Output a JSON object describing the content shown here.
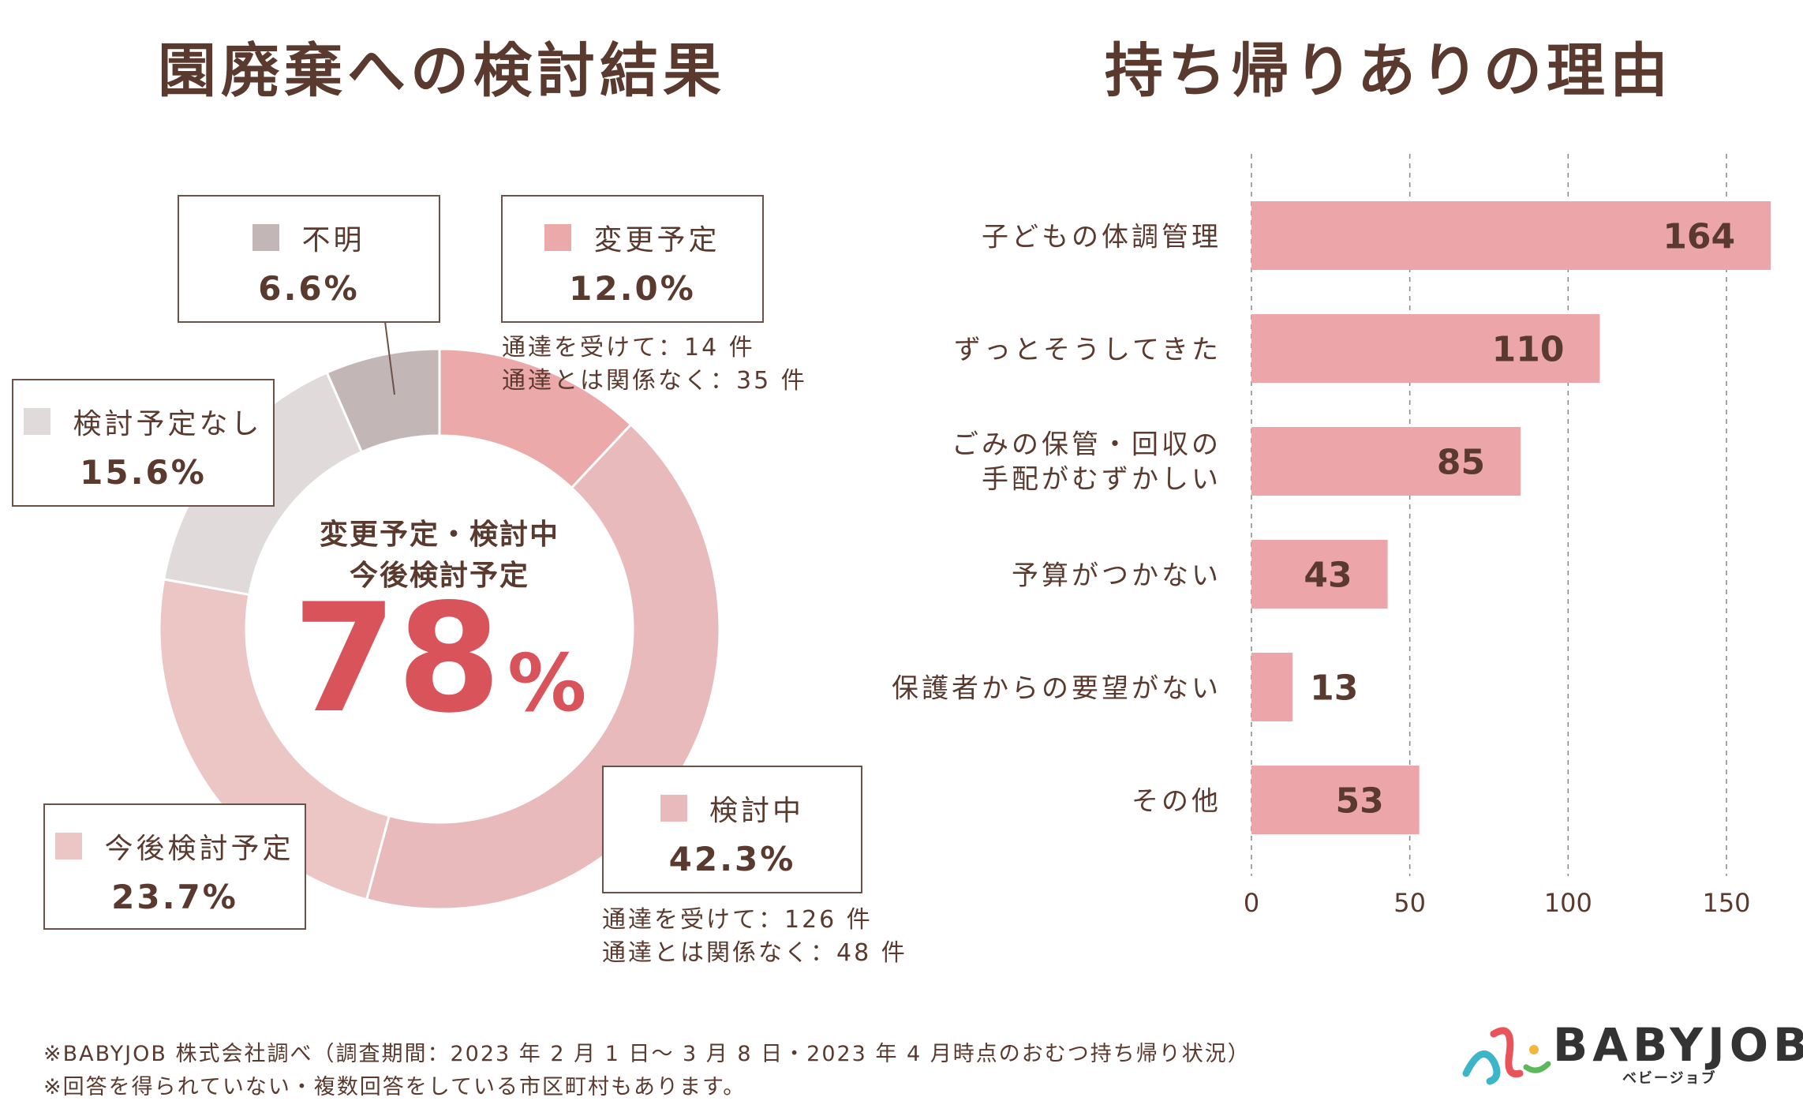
{
  "chart_data": [
    {
      "type": "pie",
      "title": "園廃棄への検討結果",
      "center_label_line1": "変更予定・検討中",
      "center_label_line2": "今後検討予定",
      "center_value": "78",
      "center_unit": "%",
      "slices": [
        {
          "name": "変更予定",
          "value": 12.0,
          "label": "12.0%",
          "color": "#eca9aa"
        },
        {
          "name": "検討中",
          "value": 42.3,
          "label": "42.3%",
          "color": "#e8babb"
        },
        {
          "name": "今後検討予定",
          "value": 23.7,
          "label": "23.7%",
          "color": "#ecc5c5"
        },
        {
          "name": "検討予定なし",
          "value": 15.6,
          "label": "15.6%",
          "color": "#e0dada"
        },
        {
          "name": "不明",
          "value": 6.6,
          "label": "6.6%",
          "color": "#c2b7b6"
        }
      ],
      "notes": {
        "henkou_line1": "通達を受けて：14 件",
        "henkou_line2": "通達とは関係なく：35 件",
        "kentou_line1": "通達を受けて：126 件",
        "kentou_line2": "通達とは関係なく：48 件"
      }
    },
    {
      "type": "bar",
      "orientation": "horizontal",
      "title": "持ち帰りありの理由",
      "categories": [
        "子どもの体調管理",
        "ずっとそうしてきた",
        "ごみの保管・回収の|手配がむずかしい",
        "予算がつかない",
        "保護者からの要望がない",
        "その他"
      ],
      "values": [
        164,
        110,
        85,
        43,
        13,
        53
      ],
      "value_labels": [
        "164",
        "110",
        "85",
        "43",
        "13",
        "53"
      ],
      "xlim": [
        0,
        165
      ],
      "xticks": [
        "0",
        "50",
        "100",
        "150"
      ],
      "grid": true,
      "bar_color": "#eca5a8"
    }
  ],
  "footnotes": {
    "line1": "※BABYJOB 株式会社調べ（調査期間：2023 年 2 月 1 日〜 3 月 8 日・2023 年 4 月時点のおむつ持ち帰り状況）",
    "line2": "※回答を得られていない・複数回答をしている市区町村もあります。"
  },
  "logo": {
    "word": "BABYJOB",
    "kana": "ベビージョブ"
  }
}
